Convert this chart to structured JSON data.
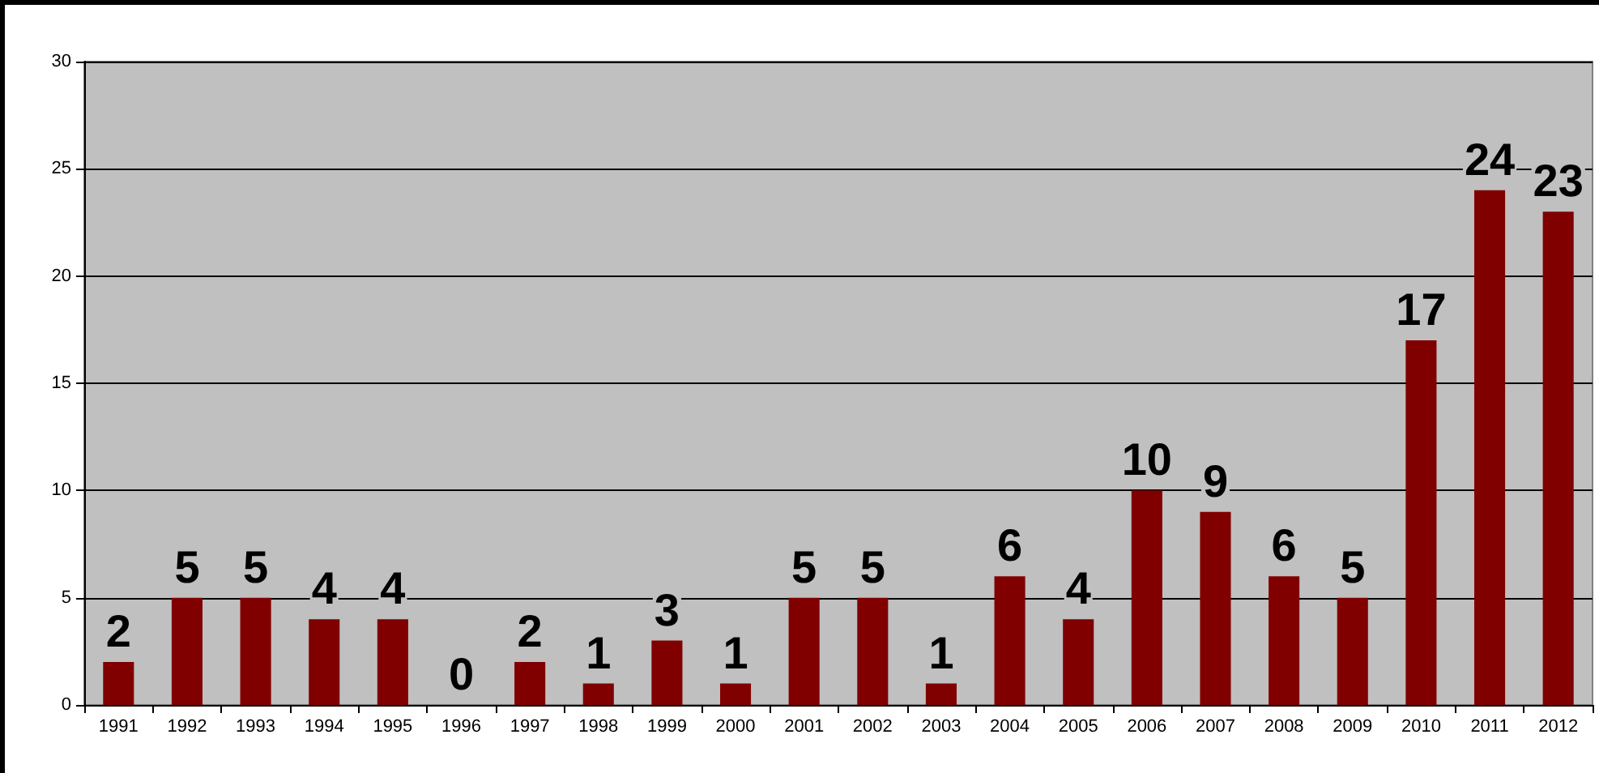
{
  "chart_data": {
    "type": "bar",
    "categories": [
      "1991",
      "1992",
      "1993",
      "1994",
      "1995",
      "1996",
      "1997",
      "1998",
      "1999",
      "2000",
      "2001",
      "2002",
      "2003",
      "2004",
      "2005",
      "2006",
      "2007",
      "2008",
      "2009",
      "2010",
      "2011",
      "2012"
    ],
    "values": [
      2,
      5,
      5,
      4,
      4,
      0,
      2,
      1,
      3,
      1,
      5,
      5,
      1,
      6,
      4,
      10,
      9,
      6,
      5,
      17,
      24,
      23
    ],
    "color": "#800000",
    "ylim": [
      0,
      30
    ],
    "yticks": [
      0,
      5,
      10,
      15,
      20,
      25,
      30
    ],
    "grid": "y",
    "data_labels": true
  }
}
